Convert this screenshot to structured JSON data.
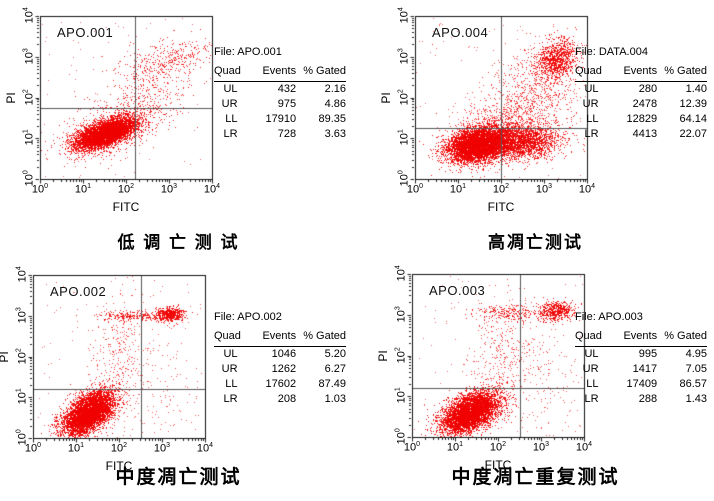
{
  "figure": {
    "background": "#ffffff",
    "dot_color": "#ef0000"
  },
  "axis_ticks": {
    "base": "10",
    "exponents": [
      0,
      1,
      2,
      3,
      4
    ]
  },
  "panels": [
    {
      "plot_label": "APO.001",
      "x_axis": "FITC",
      "y_axis": "PI",
      "file_label": "File: APO.001",
      "caption": "低 调 亡 测 试",
      "table": {
        "headers": [
          "Quad",
          "Events",
          "% Gated"
        ],
        "rows": [
          [
            "UL",
            "432",
            "2.16"
          ],
          [
            "UR",
            "975",
            "4.86"
          ],
          [
            "LL",
            "17910",
            "89.35"
          ],
          [
            "LR",
            "728",
            "3.63"
          ]
        ]
      }
    },
    {
      "plot_label": "APO.004",
      "x_axis": "FITC",
      "y_axis": "PI",
      "file_label": "File: DATA.004",
      "caption": "高凋亡测试",
      "table": {
        "headers": [
          "Quad",
          "Events",
          "% Gated"
        ],
        "rows": [
          [
            "UL",
            "280",
            "1.40"
          ],
          [
            "UR",
            "2478",
            "12.39"
          ],
          [
            "LL",
            "12829",
            "64.14"
          ],
          [
            "LR",
            "4413",
            "22.07"
          ]
        ]
      }
    },
    {
      "plot_label": "APO.002",
      "x_axis": "FITC",
      "y_axis": "PI",
      "file_label": "File: APO.002",
      "caption": "中度凋亡测试",
      "table": {
        "headers": [
          "Quad",
          "Events",
          "% Gated"
        ],
        "rows": [
          [
            "UL",
            "1046",
            "5.20"
          ],
          [
            "UR",
            "1262",
            "6.27"
          ],
          [
            "LL",
            "17602",
            "87.49"
          ],
          [
            "LR",
            "208",
            "1.03"
          ]
        ]
      }
    },
    {
      "plot_label": "APO.003",
      "x_axis": "FITC",
      "y_axis": "PI",
      "file_label": "File: APO.003",
      "caption": "中度凋亡重复测试",
      "table": {
        "headers": [
          "Quad",
          "Events",
          "% Gated"
        ],
        "rows": [
          [
            "UL",
            "995",
            "4.95"
          ],
          [
            "UR",
            "1417",
            "7.05"
          ],
          [
            "LL",
            "17409",
            "86.57"
          ],
          [
            "LR",
            "288",
            "1.43"
          ]
        ]
      }
    }
  ],
  "chart_data": [
    {
      "type": "scatter",
      "title": "APO.001",
      "xlabel": "FITC",
      "ylabel": "PI",
      "xscale": "log",
      "yscale": "log",
      "xlim": [
        1,
        10000
      ],
      "ylim": [
        1,
        10000
      ],
      "x_tick_labels": [
        "10^0",
        "10^1",
        "10^2",
        "10^3",
        "10^4"
      ],
      "y_tick_labels": [
        "10^0",
        "10^1",
        "10^2",
        "10^3",
        "10^4"
      ],
      "dot_color": "#ef0000",
      "quadrant_gates": {
        "x_decade": 2.2,
        "y_decade": 1.75
      },
      "quadrants": [
        {
          "quad": "UL",
          "events": 432,
          "pct_gated": 2.16
        },
        {
          "quad": "UR",
          "events": 975,
          "pct_gated": 4.86
        },
        {
          "quad": "LL",
          "events": 17910,
          "pct_gated": 89.35
        },
        {
          "quad": "LR",
          "events": 728,
          "pct_gated": 3.63
        }
      ],
      "clusters": [
        {
          "n": 5200,
          "cx": 1.52,
          "cy": 1.12,
          "sx": 0.34,
          "sy": 0.18,
          "rho": 0.6
        },
        {
          "n": 900,
          "cx": 1.65,
          "cy": 1.22,
          "sx": 0.55,
          "sy": 0.34,
          "rho": 0.55,
          "alpha": 0.85
        },
        {
          "n": 420,
          "cx": 2.45,
          "cy": 2.15,
          "sx": 0.6,
          "sy": 0.55,
          "rho": 0.45,
          "alpha": 0.8
        },
        {
          "n": 260,
          "cx": 3.05,
          "cy": 2.95,
          "sx": 0.5,
          "sy": 0.22,
          "rho": 0.35,
          "alpha": 0.85
        },
        {
          "n": 100,
          "uniform": true,
          "alpha": 0.6
        }
      ]
    },
    {
      "type": "scatter",
      "title": "APO.004",
      "xlabel": "FITC",
      "ylabel": "PI",
      "xscale": "log",
      "yscale": "log",
      "xlim": [
        1,
        10000
      ],
      "ylim": [
        1,
        10000
      ],
      "x_tick_labels": [
        "10^0",
        "10^1",
        "10^2",
        "10^3",
        "10^4"
      ],
      "y_tick_labels": [
        "10^0",
        "10^1",
        "10^2",
        "10^3",
        "10^4"
      ],
      "dot_color": "#ef0000",
      "quadrant_gates": {
        "x_decade": 2.0,
        "y_decade": 1.25
      },
      "quadrants": [
        {
          "quad": "UL",
          "events": 280,
          "pct_gated": 1.4
        },
        {
          "quad": "UR",
          "events": 2478,
          "pct_gated": 12.39
        },
        {
          "quad": "LL",
          "events": 12829,
          "pct_gated": 64.14
        },
        {
          "quad": "LR",
          "events": 4413,
          "pct_gated": 22.07
        }
      ],
      "clusters": [
        {
          "n": 5200,
          "cx": 1.45,
          "cy": 0.85,
          "sx": 0.35,
          "sy": 0.22,
          "rho": 0.25
        },
        {
          "n": 2600,
          "cx": 2.35,
          "cy": 0.92,
          "sx": 0.5,
          "sy": 0.22,
          "rho": 0.05,
          "alpha": 0.85
        },
        {
          "n": 950,
          "cx": 3.3,
          "cy": 2.95,
          "sx": 0.24,
          "sy": 0.24,
          "rho": 0.2,
          "alpha": 0.9
        },
        {
          "n": 900,
          "cx": 2.7,
          "cy": 2.05,
          "sx": 0.55,
          "sy": 0.6,
          "rho": 0.35,
          "alpha": 0.75
        },
        {
          "n": 250,
          "cx": 2.1,
          "cy": 1.5,
          "sx": 0.55,
          "sy": 0.2,
          "rho": 0,
          "alpha": 0.7
        },
        {
          "n": 120,
          "uniform": true,
          "alpha": 0.6
        }
      ]
    },
    {
      "type": "scatter",
      "title": "APO.002",
      "xlabel": "FITC",
      "ylabel": "PI",
      "xscale": "log",
      "yscale": "log",
      "xlim": [
        1,
        10000
      ],
      "ylim": [
        1,
        10000
      ],
      "x_tick_labels": [
        "10^0",
        "10^1",
        "10^2",
        "10^3",
        "10^4"
      ],
      "y_tick_labels": [
        "10^0",
        "10^1",
        "10^2",
        "10^3",
        "10^4"
      ],
      "dot_color": "#ef0000",
      "quadrant_gates": {
        "x_decade": 2.5,
        "y_decade": 1.2
      },
      "quadrants": [
        {
          "quad": "UL",
          "events": 1046,
          "pct_gated": 5.2
        },
        {
          "quad": "UR",
          "events": 1262,
          "pct_gated": 6.27
        },
        {
          "quad": "LL",
          "events": 17602,
          "pct_gated": 87.49
        },
        {
          "quad": "LR",
          "events": 208,
          "pct_gated": 1.03
        }
      ],
      "clusters": [
        {
          "n": 5200,
          "cx": 1.28,
          "cy": 0.62,
          "sx": 0.3,
          "sy": 0.27,
          "rho": 0.55
        },
        {
          "n": 280,
          "cx": 2.35,
          "cy": 3.0,
          "sx": 0.45,
          "sy": 0.07,
          "rho": 0,
          "alpha": 0.85
        },
        {
          "n": 450,
          "cx": 3.2,
          "cy": 3.05,
          "sx": 0.16,
          "sy": 0.09,
          "rho": 0
        },
        {
          "n": 300,
          "cx": 2.0,
          "cy": 2.0,
          "sx": 0.38,
          "sy": 0.7,
          "rho": 0.15,
          "alpha": 0.7
        },
        {
          "n": 130,
          "cx": 3.0,
          "cy": 1.1,
          "sx": 0.5,
          "sy": 0.7,
          "rho": 0,
          "alpha": 0.65
        },
        {
          "n": 100,
          "uniform": true,
          "alpha": 0.6
        }
      ]
    },
    {
      "type": "scatter",
      "title": "APO.003",
      "xlabel": "FITC",
      "ylabel": "PI",
      "xscale": "log",
      "yscale": "log",
      "xlim": [
        1,
        10000
      ],
      "ylim": [
        1,
        10000
      ],
      "x_tick_labels": [
        "10^0",
        "10^1",
        "10^2",
        "10^3",
        "10^4"
      ],
      "y_tick_labels": [
        "10^0",
        "10^1",
        "10^2",
        "10^3",
        "10^4"
      ],
      "dot_color": "#ef0000",
      "quadrant_gates": {
        "x_decade": 2.5,
        "y_decade": 1.2
      },
      "quadrants": [
        {
          "quad": "UL",
          "events": 995,
          "pct_gated": 4.95
        },
        {
          "quad": "UR",
          "events": 1417,
          "pct_gated": 7.05
        },
        {
          "quad": "LL",
          "events": 17409,
          "pct_gated": 86.57
        },
        {
          "quad": "LR",
          "events": 288,
          "pct_gated": 1.43
        }
      ],
      "clusters": [
        {
          "n": 5200,
          "cx": 1.35,
          "cy": 0.6,
          "sx": 0.33,
          "sy": 0.26,
          "rho": 0.5
        },
        {
          "n": 260,
          "cx": 2.3,
          "cy": 3.05,
          "sx": 0.42,
          "sy": 0.1,
          "rho": 0,
          "alpha": 0.85
        },
        {
          "n": 520,
          "cx": 3.35,
          "cy": 3.1,
          "sx": 0.2,
          "sy": 0.12,
          "rho": 0.1
        },
        {
          "n": 320,
          "cx": 2.1,
          "cy": 2.0,
          "sx": 0.42,
          "sy": 0.68,
          "rho": 0.15,
          "alpha": 0.7
        },
        {
          "n": 150,
          "cx": 3.1,
          "cy": 1.25,
          "sx": 0.5,
          "sy": 0.75,
          "rho": 0,
          "alpha": 0.65
        },
        {
          "n": 100,
          "uniform": true,
          "alpha": 0.6
        }
      ]
    }
  ]
}
